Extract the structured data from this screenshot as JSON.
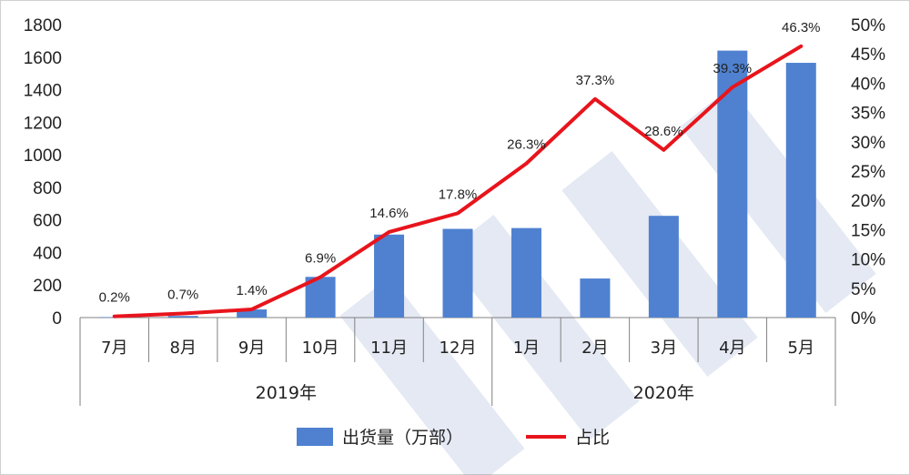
{
  "chart_data": {
    "type": "bar",
    "categories": [
      "7月",
      "8月",
      "9月",
      "10月",
      "11月",
      "12月",
      "1月",
      "2月",
      "3月",
      "4月",
      "5月"
    ],
    "groups": [
      {
        "label": "2019年",
        "span": [
          0,
          5
        ]
      },
      {
        "label": "2020年",
        "span": [
          6,
          10
        ]
      }
    ],
    "series": [
      {
        "name": "出货量（万部）",
        "type": "bar",
        "axis": "left",
        "color": "#4f81d0",
        "values": [
          3,
          10,
          50,
          250,
          510,
          545,
          550,
          240,
          625,
          1640,
          1565
        ]
      },
      {
        "name": "占比",
        "type": "line",
        "axis": "right",
        "color": "#e8141c",
        "values": [
          0.2,
          0.7,
          1.4,
          6.9,
          14.6,
          17.8,
          26.3,
          37.3,
          28.6,
          39.3,
          46.3
        ],
        "labels": [
          "0.2%",
          "0.7%",
          "1.4%",
          "6.9%",
          "14.6%",
          "17.8%",
          "26.3%",
          "37.3%",
          "28.6%",
          "39.3%",
          "46.3%"
        ]
      }
    ],
    "y_left": {
      "ylim": [
        0,
        1800
      ],
      "ticks": [
        0,
        200,
        400,
        600,
        800,
        1000,
        1200,
        1400,
        1600,
        1800
      ]
    },
    "y_right": {
      "ylim": [
        0,
        50
      ],
      "ticks": [
        "0%",
        "5%",
        "10%",
        "15%",
        "20%",
        "25%",
        "30%",
        "35%",
        "40%",
        "45%",
        "50%"
      ]
    },
    "legend": {
      "placement": "bottom",
      "items": [
        "出货量（万部）",
        "占比"
      ]
    },
    "grid": false
  }
}
